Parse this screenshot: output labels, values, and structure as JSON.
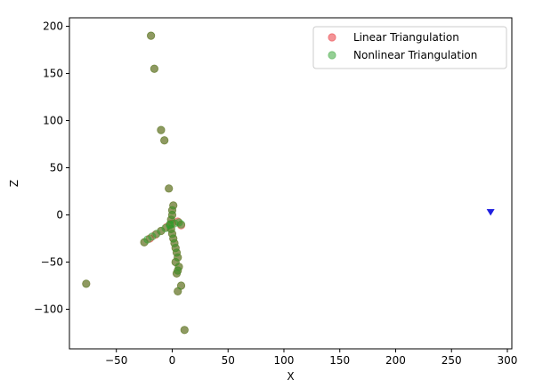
{
  "chart_data": {
    "type": "scatter",
    "title": "",
    "xlabel": "X",
    "ylabel": "Z",
    "xlim": [
      -92,
      304
    ],
    "ylim": [
      -142,
      209
    ],
    "xticks": [
      -50,
      0,
      50,
      100,
      150,
      200,
      250,
      300
    ],
    "yticks": [
      -100,
      -50,
      0,
      50,
      100,
      150,
      200
    ],
    "grid": false,
    "legend_position": "top-right",
    "series": [
      {
        "name": "Linear Triangulation",
        "color": "#e8282e",
        "alpha": 0.5,
        "marker": "circle",
        "points": [
          [
            -19,
            190
          ],
          [
            -16,
            155
          ],
          [
            -10,
            90
          ],
          [
            -7,
            79
          ],
          [
            -3,
            28
          ],
          [
            -77,
            -73
          ],
          [
            -25,
            -29
          ],
          [
            11,
            -122
          ],
          [
            5,
            -81
          ],
          [
            8,
            -75
          ],
          [
            4,
            -62
          ],
          [
            5,
            -59
          ],
          [
            6,
            -55
          ],
          [
            3,
            -50
          ],
          [
            5,
            -45
          ],
          [
            4,
            -40
          ],
          [
            3,
            -35
          ],
          [
            2,
            -30
          ],
          [
            1,
            -25
          ],
          [
            0,
            -20
          ],
          [
            -1,
            -15
          ],
          [
            -2,
            -10
          ],
          [
            -1,
            -5
          ],
          [
            0,
            0
          ],
          [
            0,
            5
          ],
          [
            1,
            10
          ],
          [
            -20,
            -25
          ],
          [
            -15,
            -21
          ],
          [
            -10,
            -17
          ],
          [
            -5,
            -13
          ],
          [
            0,
            -9
          ],
          [
            5,
            -7
          ],
          [
            8,
            -11
          ]
        ]
      },
      {
        "name": "Nonlinear Triangulation",
        "color": "#2ca02c",
        "alpha": 0.5,
        "marker": "circle",
        "points": [
          [
            -19,
            190
          ],
          [
            -16,
            155
          ],
          [
            -10,
            90
          ],
          [
            -7,
            79
          ],
          [
            -3,
            28
          ],
          [
            -77,
            -73
          ],
          [
            -25,
            -29
          ],
          [
            11,
            -122
          ],
          [
            5,
            -81
          ],
          [
            8,
            -75
          ],
          [
            4,
            -62
          ],
          [
            5,
            -59
          ],
          [
            6,
            -55
          ],
          [
            3,
            -50
          ],
          [
            5,
            -45
          ],
          [
            4,
            -40
          ],
          [
            3,
            -35
          ],
          [
            2,
            -30
          ],
          [
            1,
            -25
          ],
          [
            0,
            -20
          ],
          [
            -1,
            -15
          ],
          [
            -2,
            -10
          ],
          [
            -1,
            -5
          ],
          [
            0,
            0
          ],
          [
            0,
            5
          ],
          [
            1,
            10
          ],
          [
            -22,
            -26
          ],
          [
            -18,
            -23
          ],
          [
            -14,
            -20
          ],
          [
            -10,
            -17
          ],
          [
            -6,
            -14
          ],
          [
            -2,
            -11
          ],
          [
            2,
            -9
          ],
          [
            6,
            -8
          ],
          [
            8,
            -10
          ]
        ]
      },
      {
        "name": "",
        "color": "#2020e0",
        "alpha": 1,
        "marker": "triangle-down",
        "points": [
          [
            285,
            3
          ]
        ]
      }
    ]
  }
}
